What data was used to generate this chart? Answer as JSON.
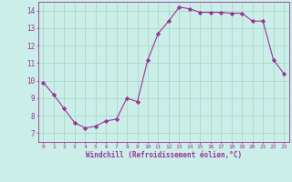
{
  "x": [
    0,
    1,
    2,
    3,
    4,
    5,
    6,
    7,
    8,
    9,
    10,
    11,
    12,
    13,
    14,
    15,
    16,
    17,
    18,
    19,
    20,
    21,
    22,
    23
  ],
  "y": [
    9.9,
    9.2,
    8.4,
    7.6,
    7.3,
    7.4,
    7.7,
    7.8,
    9.0,
    8.8,
    11.2,
    12.7,
    13.4,
    14.2,
    14.1,
    13.9,
    13.9,
    13.9,
    13.85,
    13.85,
    13.4,
    13.4,
    11.2,
    10.4
  ],
  "line_color": "#993399",
  "marker": "D",
  "marker_size": 2.2,
  "bg_color": "#cceee8",
  "grid_color": "#aaddcc",
  "xlabel": "Windchill (Refroidissement éolien,°C)",
  "xlabel_color": "#993399",
  "tick_color": "#993399",
  "xlim": [
    -0.5,
    23.5
  ],
  "ylim": [
    6.5,
    14.5
  ],
  "yticks": [
    7,
    8,
    9,
    10,
    11,
    12,
    13,
    14
  ],
  "xticks": [
    0,
    1,
    2,
    3,
    4,
    5,
    6,
    7,
    8,
    9,
    10,
    11,
    12,
    13,
    14,
    15,
    16,
    17,
    18,
    19,
    20,
    21,
    22,
    23
  ]
}
